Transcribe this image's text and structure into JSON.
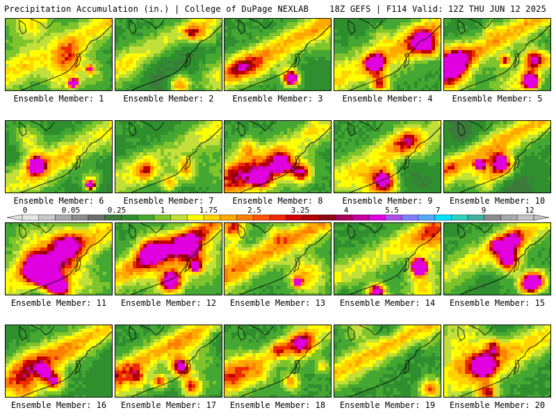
{
  "header": {
    "title_left": "Precipitation Accumulation (in.) | College of DuPage NEXLAB",
    "title_right": "18Z GEFS | F114 Valid: 12Z THU JUN 12 2025"
  },
  "panels": [
    {
      "label": "Ensemble Member: 1",
      "seed": 11
    },
    {
      "label": "Ensemble Member: 2",
      "seed": 23
    },
    {
      "label": "Ensemble Member: 3",
      "seed": 37
    },
    {
      "label": "Ensemble Member: 4",
      "seed": 41
    },
    {
      "label": "Ensemble Member: 5",
      "seed": 53
    },
    {
      "label": "Ensemble Member: 6",
      "seed": 67
    },
    {
      "label": "Ensemble Member: 7",
      "seed": 71
    },
    {
      "label": "Ensemble Member: 8",
      "seed": 83
    },
    {
      "label": "Ensemble Member: 9",
      "seed": 97
    },
    {
      "label": "Ensemble Member: 10",
      "seed": 101
    },
    {
      "label": "Ensemble Member: 11",
      "seed": 113
    },
    {
      "label": "Ensemble Member: 12",
      "seed": 127
    },
    {
      "label": "Ensemble Member: 13",
      "seed": 131
    },
    {
      "label": "Ensemble Member: 14",
      "seed": 149
    },
    {
      "label": "Ensemble Member: 15",
      "seed": 151
    },
    {
      "label": "Ensemble Member: 16",
      "seed": 163
    },
    {
      "label": "Ensemble Member: 17",
      "seed": 173
    },
    {
      "label": "Ensemble Member: 18",
      "seed": 181
    },
    {
      "label": "Ensemble Member: 19",
      "seed": 191
    },
    {
      "label": "Ensemble Member: 20",
      "seed": 199
    }
  ],
  "colorbar": {
    "tick_labels": [
      "0",
      "0.05",
      "0.25",
      "1",
      "1.75",
      "2.5",
      "3.25",
      "4",
      "5.5",
      "7",
      "9",
      "12"
    ],
    "colors": [
      "#e6e6e6",
      "#c8c8c8",
      "#aaaaaa",
      "#8c8c8c",
      "#6e6e6e",
      "#3c7a3c",
      "#2f8f2f",
      "#45a832",
      "#7fc42a",
      "#c3e03a",
      "#ffff00",
      "#ffd400",
      "#ffaa00",
      "#ff7f00",
      "#ff5500",
      "#ee2a00",
      "#d40000",
      "#b30000",
      "#8f0012",
      "#a8005a",
      "#c800a0",
      "#e000e0",
      "#b050e8",
      "#7f7fff",
      "#55aaff",
      "#00e0ff",
      "#30d0c0",
      "#40b0a0",
      "#8c8c8c",
      "#a8a8a8",
      "#c4c4c4"
    ]
  }
}
